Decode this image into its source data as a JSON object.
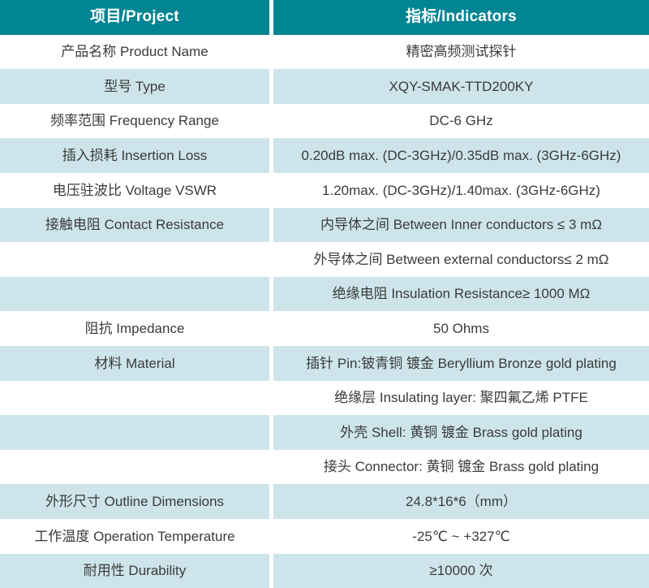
{
  "colors": {
    "header_bg": "#028593",
    "header_text": "#ffffff",
    "row_alt_bg": "#cde5ea",
    "row_bg": "#ffffff",
    "body_text": "#3b3b3b"
  },
  "table": {
    "headers": {
      "project": "项目/Project",
      "indicators": "指标/Indicators"
    },
    "rows": [
      {
        "project": "产品名称 Product Name",
        "indicator": "精密高频测试探针"
      },
      {
        "project": "型号 Type",
        "indicator": "XQY-SMAK-TTD200KY"
      },
      {
        "project": "频率范围 Frequency Range",
        "indicator": "DC-6 GHz"
      },
      {
        "project": "插入损耗 Insertion Loss",
        "indicator": "0.20dB max. (DC-3GHz)/0.35dB max. (3GHz-6GHz)"
      },
      {
        "project": "电压驻波比 Voltage VSWR",
        "indicator": "1.20max. (DC-3GHz)/1.40max. (3GHz-6GHz)"
      },
      {
        "project": "接触电阻 Contact Resistance",
        "indicator": "内导体之间 Between Inner conductors ≤ 3 mΩ"
      },
      {
        "project": "",
        "indicator": "外导体之间 Between external conductors≤ 2 mΩ"
      },
      {
        "project": "",
        "indicator": "绝缘电阻 Insulation Resistance≥ 1000 MΩ"
      },
      {
        "project": "阻抗 Impedance",
        "indicator": "50 Ohms"
      },
      {
        "project": "材料 Material",
        "indicator": "插针 Pin:铍青铜 镀金 Beryllium Bronze gold plating"
      },
      {
        "project": "",
        "indicator": "绝缘层 Insulating layer: 聚四氟乙烯 PTFE"
      },
      {
        "project": "",
        "indicator": "外壳 Shell: 黄铜 镀金 Brass gold plating"
      },
      {
        "project": "",
        "indicator": "接头 Connector: 黄铜 镀金 Brass gold plating"
      },
      {
        "project": "外形尺寸 Outline Dimensions",
        "indicator": "24.8*16*6（mm）"
      },
      {
        "project": "工作温度 Operation Temperature",
        "indicator": "-25℃ ~ +327℃"
      },
      {
        "project": "耐用性 Durability",
        "indicator": "≥10000 次"
      }
    ]
  }
}
